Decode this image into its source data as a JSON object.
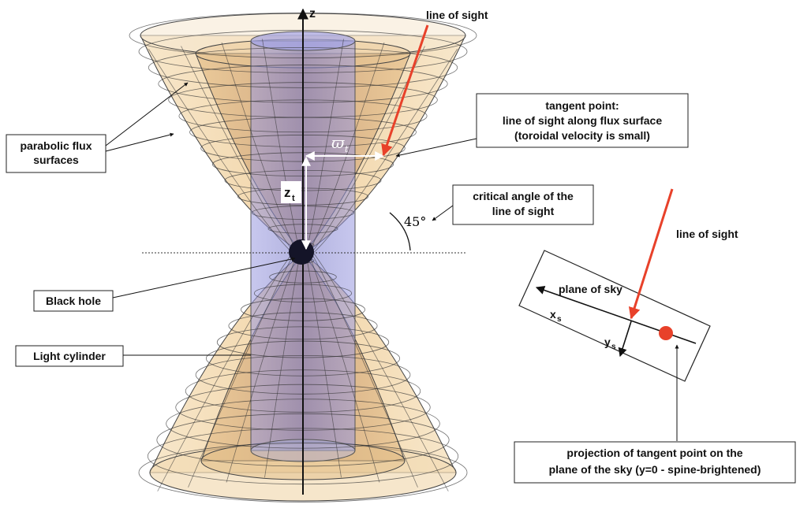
{
  "labels": {
    "z_axis": "z",
    "line_of_sight_top": "line of sight",
    "parabolic_flux_line1": "parabolic flux",
    "parabolic_flux_line2": "surfaces",
    "tangent_line1": "tangent point:",
    "tangent_line2": "line of sight along flux surface",
    "tangent_line3": "(toroidal velocity is small)",
    "varpi_symbol": "ϖ",
    "varpi_sub": "t",
    "z_t": "z",
    "z_t_sub": "t",
    "critical_line1": "critical angle of the",
    "critical_line2": "line of sight",
    "angle_value": "45°",
    "black_hole": "Black hole",
    "light_cylinder": "Light cylinder",
    "line_of_sight_right": "line of sight",
    "plane_of_sky": "plane of sky",
    "x_s": "x",
    "x_s_sub": "s",
    "y_s": "y",
    "y_s_sub": "s",
    "projection_line1": "projection of tangent point on the",
    "projection_line2": "plane of the sky (y=0 - spine-brightened)"
  },
  "colors": {
    "line_of_sight": "#e8412a",
    "flux_surface_fill": "#f3d7a8",
    "light_cylinder_fill": "#8f8fd8",
    "black_hole": "#141428",
    "projection_point": "#e8412a"
  }
}
